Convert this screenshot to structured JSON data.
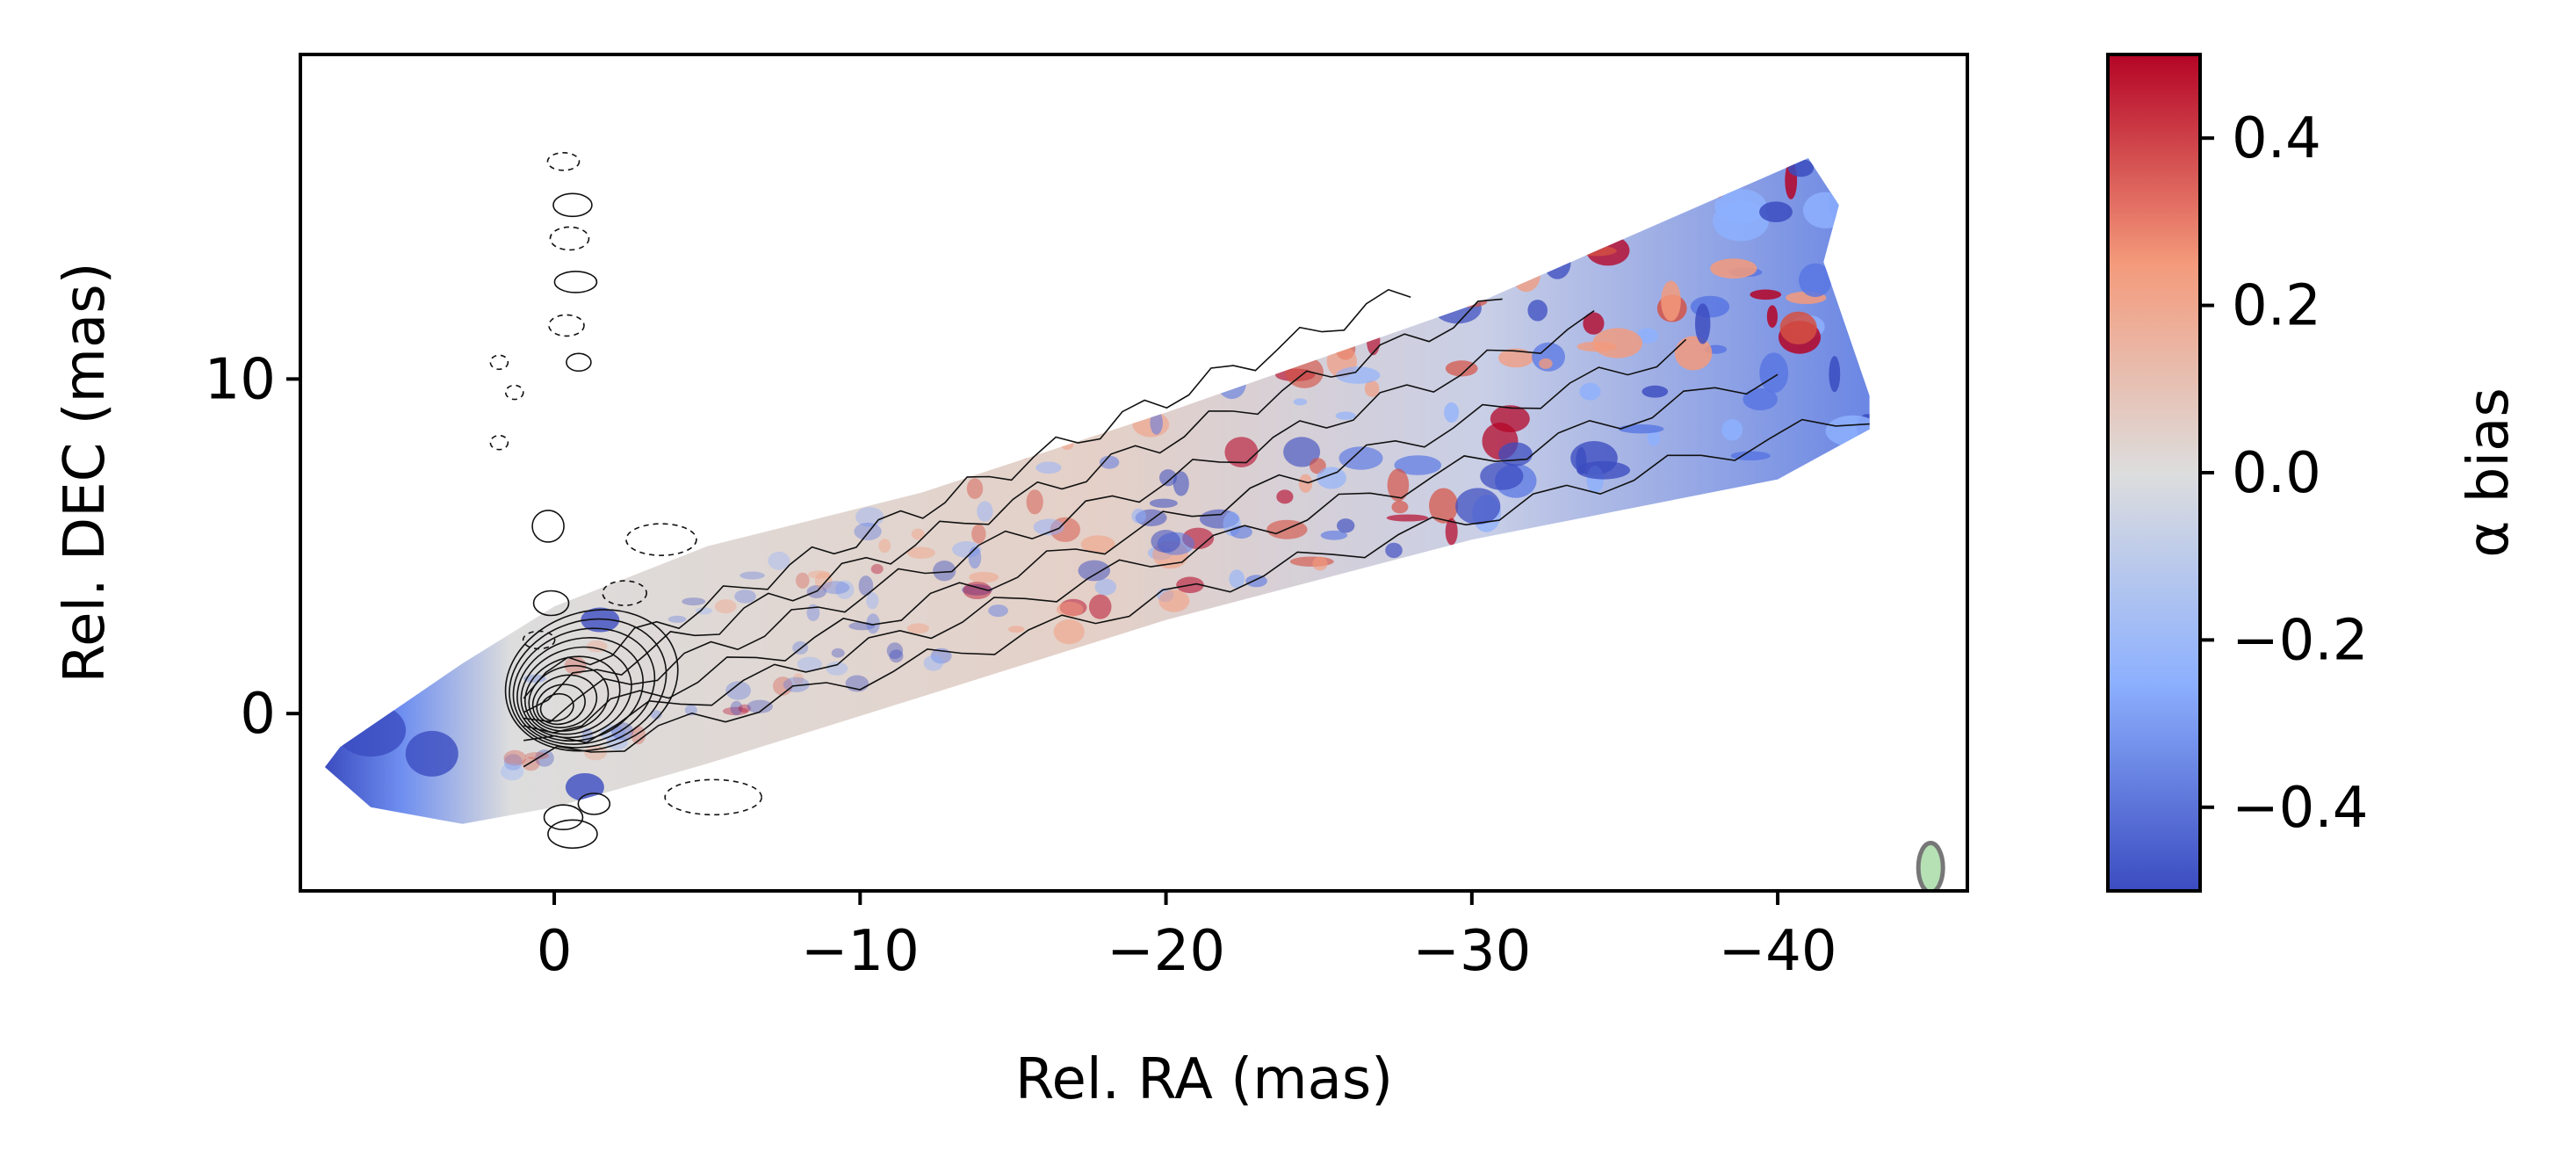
{
  "chart_data": {
    "type": "heatmap",
    "title": "",
    "xlabel": "Rel. RA (mas)",
    "ylabel": "Rel. DEC (mas)",
    "xlim": [
      8.3,
      -46.2
    ],
    "ylim": [
      -5.3,
      19.7
    ],
    "xticks": [
      0,
      -10,
      -20,
      -30,
      -40
    ],
    "xtick_labels": [
      "0",
      "−10",
      "−20",
      "−30",
      "−40"
    ],
    "yticks": [
      0,
      10
    ],
    "ytick_labels": [
      "0",
      "10"
    ],
    "grid": false,
    "colorbar": {
      "label": "α bias",
      "range": [
        -0.5,
        0.5
      ],
      "ticks": [
        0.4,
        0.2,
        0.0,
        -0.2,
        -0.4
      ],
      "tick_labels": [
        "0.4",
        "0.2",
        "0.0",
        "−0.2",
        "−0.4"
      ],
      "colormap": "coolwarm",
      "colors": [
        "#3b4cc0",
        "#8db0fe",
        "#dddddd",
        "#f49a7b",
        "#b40426"
      ]
    },
    "jet": {
      "core": [
        0,
        0
      ],
      "ridge_end": [
        -42,
        14.5
      ],
      "note_in_image": "none"
    },
    "beam": {
      "center": [
        -45,
        -4.5
      ],
      "color": "#9fd89f"
    }
  }
}
